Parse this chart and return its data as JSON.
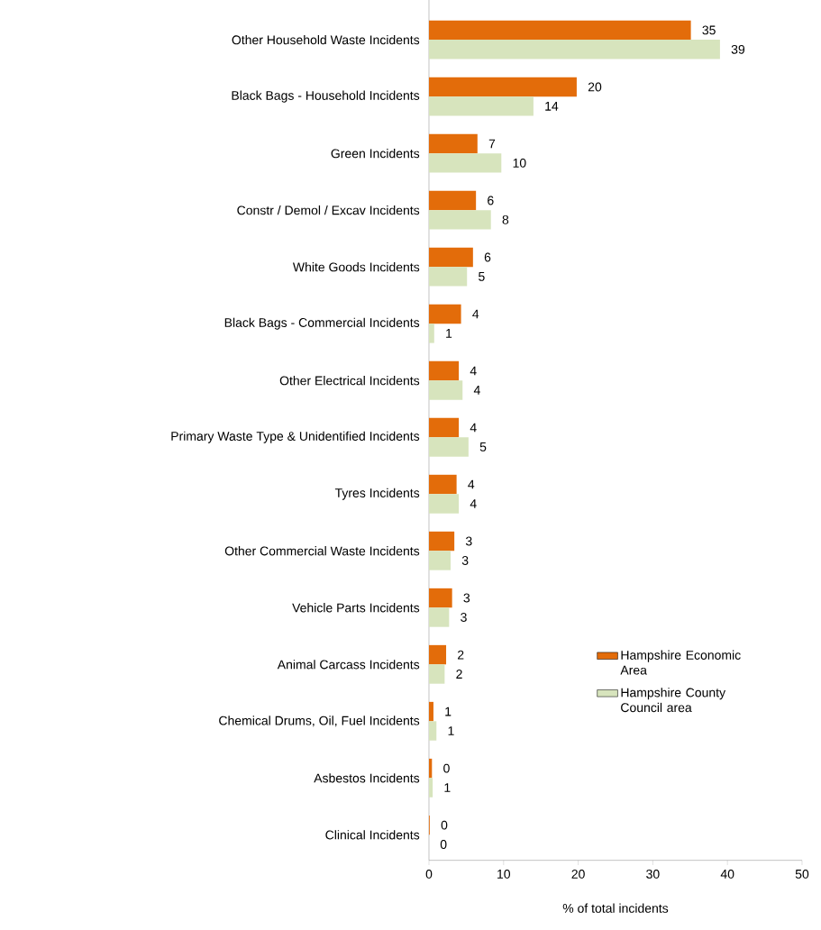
{
  "chart_data": {
    "type": "bar",
    "orientation": "horizontal",
    "categories": [
      "Other Household Waste Incidents",
      "Black Bags - Household Incidents",
      "Green Incidents",
      "Constr / Demol / Excav Incidents",
      "White Goods Incidents",
      "Black Bags - Commercial Incidents",
      "Other Electrical Incidents",
      "Primary Waste Type & Unidentified Incidents",
      "Tyres Incidents",
      "Other Commercial Waste Incidents",
      "Vehicle Parts Incidents",
      "Animal Carcass Incidents",
      "Chemical Drums, Oil, Fuel Incidents",
      "Asbestos Incidents",
      "Clinical Incidents"
    ],
    "series": [
      {
        "name": "Hampshire Economic Area",
        "color": "#e36c0a",
        "values": [
          35.1,
          19.8,
          6.5,
          6.3,
          5.9,
          4.3,
          4.0,
          4.0,
          3.7,
          3.4,
          3.1,
          2.3,
          0.6,
          0.4,
          0.1
        ],
        "value_labels": [
          "35",
          "20",
          "7",
          "6",
          "6",
          "4",
          "4",
          "4",
          "4",
          "3",
          "3",
          "2",
          "1",
          "0",
          "0"
        ]
      },
      {
        "name": "Hampshire County Council area",
        "color": "#d7e4bd",
        "values": [
          39.0,
          14.0,
          9.7,
          8.3,
          5.1,
          0.7,
          4.5,
          5.3,
          4.0,
          2.9,
          2.7,
          2.1,
          1.0,
          0.5,
          0.0
        ],
        "value_labels": [
          "39",
          "14",
          "10",
          "8",
          "5",
          "1",
          "4",
          "5",
          "4",
          "3",
          "3",
          "2",
          "1",
          "1",
          "0"
        ]
      }
    ],
    "xlim": [
      0,
      50
    ],
    "xticks": [
      0,
      10,
      20,
      30,
      40,
      50
    ],
    "xlabel": "% of total incidents",
    "legend": "bottom right"
  }
}
